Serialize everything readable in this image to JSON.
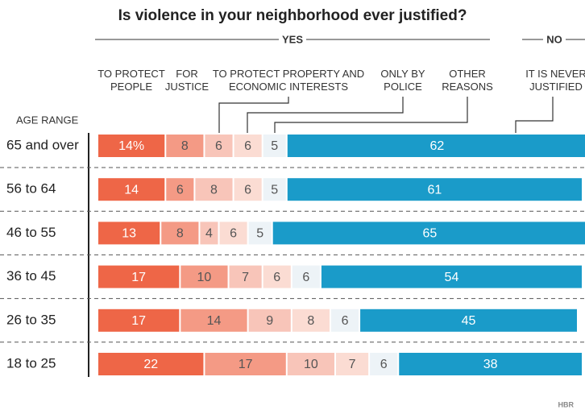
{
  "chart_data": {
    "type": "stacked-bar",
    "title": "Is violence in your neighborhood ever justified?",
    "groups": [
      "YES",
      "NO"
    ],
    "axis_label": "AGE RANGE",
    "categories": [
      "65 and over",
      "56 to 64",
      "46 to 55",
      "36 to 45",
      "26 to 35",
      "18 to 25"
    ],
    "series": [
      {
        "name": "TO PROTECT PEOPLE",
        "color": "#ee6647",
        "values": [
          14,
          14,
          13,
          17,
          17,
          22
        ],
        "value_labels": [
          "14%",
          "14",
          "13",
          "17",
          "17",
          "22"
        ]
      },
      {
        "name": "FOR JUSTICE",
        "color": "#f49a85",
        "values": [
          8,
          6,
          8,
          10,
          14,
          17
        ]
      },
      {
        "name": "TO PROTECT PROPERTY AND ECONOMIC INTERESTS",
        "color": "#f8c5b9",
        "values": [
          6,
          8,
          4,
          7,
          9,
          10
        ]
      },
      {
        "name": "ONLY BY POLICE",
        "color": "#fbdcd3",
        "values": [
          6,
          6,
          6,
          6,
          8,
          7
        ]
      },
      {
        "name": "OTHER REASONS",
        "color": "#edf3f7",
        "values": [
          5,
          5,
          5,
          6,
          6,
          6
        ]
      },
      {
        "name": "IT IS NEVER JUSTIFIED",
        "color": "#1a9bc9",
        "values": [
          62,
          61,
          65,
          54,
          45,
          38
        ]
      }
    ],
    "source": "HBR"
  }
}
